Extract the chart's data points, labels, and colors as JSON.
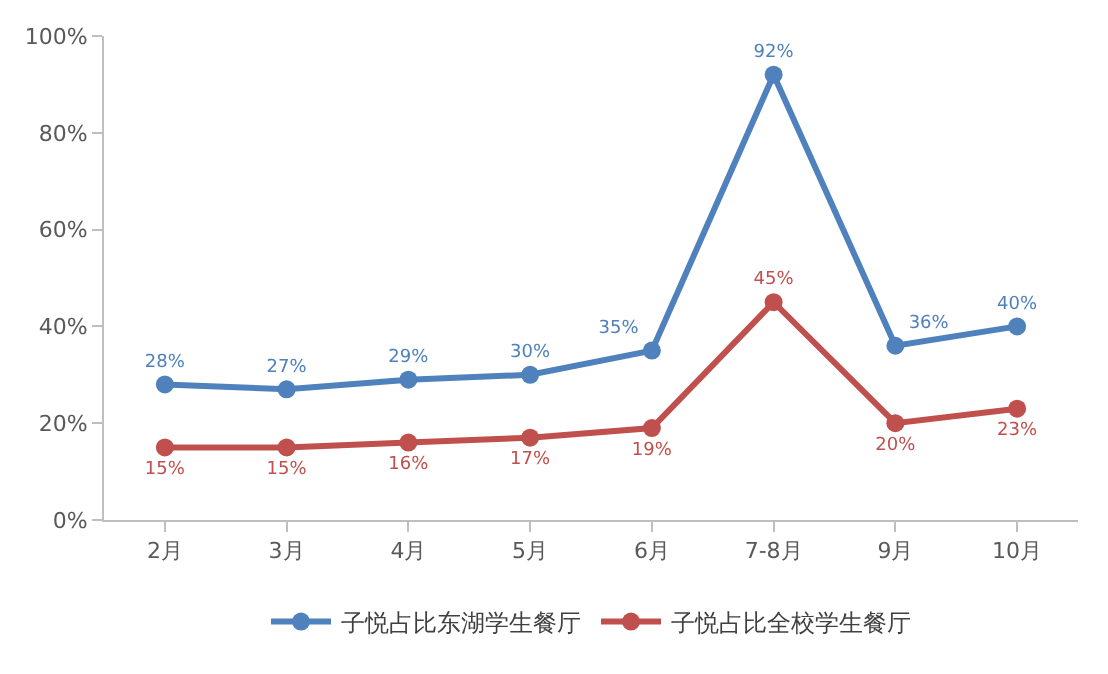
{
  "chart_data": {
    "type": "line",
    "categories": [
      "2月",
      "3月",
      "4月",
      "5月",
      "6月",
      "7-8月",
      "9月",
      "10月"
    ],
    "series": [
      {
        "name": "子悦占比东湖学生餐厅",
        "color": "#4f81bd",
        "values": [
          28,
          27,
          29,
          30,
          35,
          92,
          36,
          40
        ],
        "value_labels": [
          "28%",
          "27%",
          "29%",
          "30%",
          "35%",
          "92%",
          "36%",
          "40%"
        ]
      },
      {
        "name": "子悦占比全校学生餐厅",
        "color": "#c0504d",
        "values": [
          15,
          15,
          16,
          17,
          19,
          45,
          20,
          23
        ],
        "value_labels": [
          "15%",
          "15%",
          "16%",
          "17%",
          "19%",
          "45%",
          "20%",
          "23%"
        ]
      }
    ],
    "ylim": [
      0,
      100
    ],
    "yticks": [
      {
        "value": 0,
        "label": "0%"
      },
      {
        "value": 20,
        "label": "20%"
      },
      {
        "value": 40,
        "label": "40%"
      },
      {
        "value": 60,
        "label": "60%"
      },
      {
        "value": 80,
        "label": "80%"
      },
      {
        "value": 100,
        "label": "100%"
      }
    ],
    "legend": "bottom",
    "marker": "circle",
    "line_style": "solid",
    "grid": false
  }
}
